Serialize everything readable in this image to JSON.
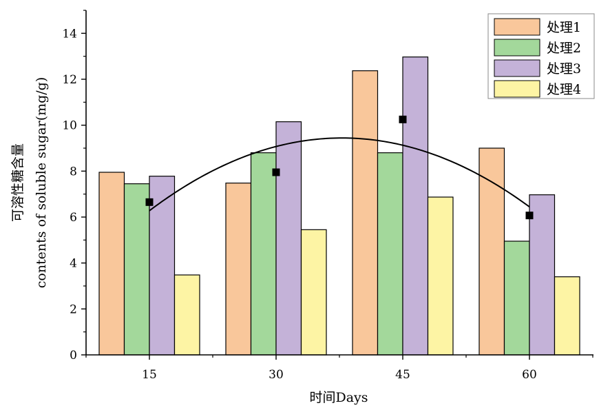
{
  "chart_data": {
    "type": "bar",
    "categories": [
      "15",
      "30",
      "45",
      "60"
    ],
    "series": [
      {
        "name": "处理1",
        "color": "#F9C79B",
        "values": [
          7.95,
          7.48,
          12.37,
          9.0
        ]
      },
      {
        "name": "处理2",
        "color": "#A3D89B",
        "values": [
          7.45,
          8.8,
          8.8,
          4.95
        ]
      },
      {
        "name": "处理3",
        "color": "#C4B2D8",
        "values": [
          7.78,
          10.15,
          12.97,
          6.97
        ]
      },
      {
        "name": "处理4",
        "color": "#FDF4A4",
        "values": [
          3.48,
          5.45,
          6.87,
          3.4
        ]
      }
    ],
    "mean_points": {
      "x": [
        "15",
        "30",
        "45",
        "60"
      ],
      "y": [
        6.65,
        7.95,
        10.25,
        6.07
      ]
    },
    "fit_curve": "quadratic",
    "xlabel": "时间Days",
    "ylabel_line1": "可溶性糖含量",
    "ylabel_line2": "contents of soluble sugar(mg/g)",
    "ylim": [
      0,
      15
    ],
    "yticks": [
      "0",
      "2",
      "4",
      "6",
      "8",
      "10",
      "12",
      "14"
    ],
    "legend_position": "top-right",
    "grid": false
  }
}
